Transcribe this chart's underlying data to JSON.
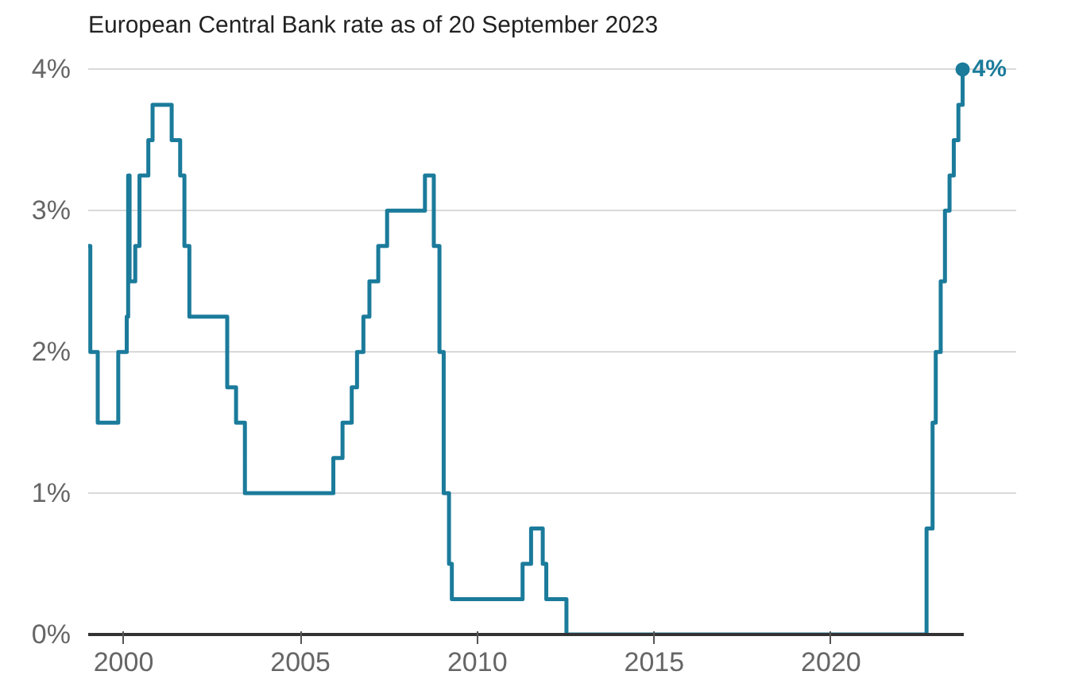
{
  "chart_data": {
    "type": "step",
    "title": "European Central Bank rate as of 20 September 2023",
    "x": [
      1999.0,
      1999.06,
      1999.27,
      1999.85,
      2000.09,
      2000.13,
      2000.17,
      2000.33,
      2000.45,
      2000.7,
      2000.82,
      2001.36,
      2001.6,
      2001.72,
      2001.86,
      2002.93,
      2003.18,
      2003.43,
      2005.93,
      2006.19,
      2006.45,
      2006.6,
      2006.78,
      2006.95,
      2007.2,
      2007.45,
      2008.52,
      2008.77,
      2008.93,
      2009.05,
      2009.2,
      2009.28,
      2011.28,
      2011.52,
      2011.85,
      2011.95,
      2012.52,
      2022.7,
      2022.87,
      2022.96,
      2023.1,
      2023.22,
      2023.35,
      2023.47,
      2023.6,
      2023.72
    ],
    "series": [
      {
        "color": "#1b7b9b",
        "values": [
          2.75,
          2.0,
          1.5,
          2.0,
          2.25,
          3.25,
          2.5,
          2.75,
          3.25,
          3.5,
          3.75,
          3.5,
          3.25,
          2.75,
          2.25,
          1.75,
          1.5,
          1.0,
          1.25,
          1.5,
          1.75,
          2.0,
          2.25,
          2.5,
          2.75,
          3.0,
          3.25,
          2.75,
          2.0,
          1.0,
          0.5,
          0.25,
          0.5,
          0.75,
          0.5,
          0.25,
          0.0,
          0.75,
          1.5,
          2.0,
          2.5,
          3.0,
          3.25,
          3.5,
          3.75,
          4.0
        ]
      }
    ],
    "xlim": [
      1999.0,
      2023.75
    ],
    "xticks": [
      2000,
      2005,
      2010,
      2015,
      2020
    ],
    "ylim": [
      0,
      4
    ],
    "yticks": [
      {
        "value": 0,
        "label": "0%"
      },
      {
        "value": 1,
        "label": "1%"
      },
      {
        "value": 2,
        "label": "2%"
      },
      {
        "value": 3,
        "label": "3%"
      },
      {
        "value": 4,
        "label": "4%"
      }
    ],
    "grid": "y",
    "marker": "none",
    "line_style": "solid",
    "annotations": [
      {
        "text": "4%",
        "x": 2023.72,
        "y": 4.0
      }
    ]
  }
}
